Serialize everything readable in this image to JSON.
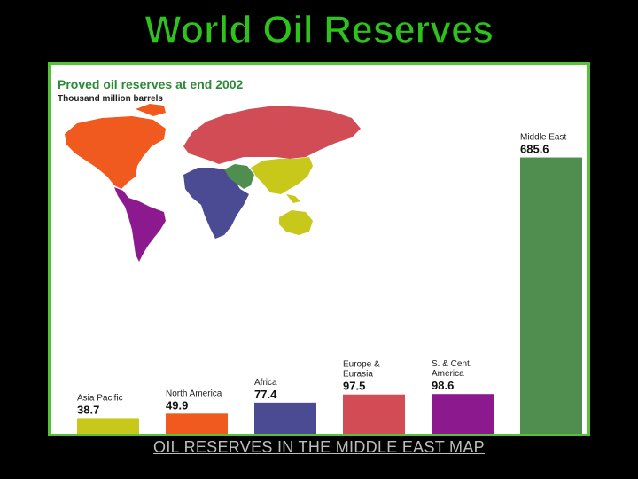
{
  "slide": {
    "title": "World Oil Reserves",
    "caption_link": "OIL RESERVES IN THE MIDDLE EAST MAP"
  },
  "chart_data": {
    "type": "bar",
    "title": "Proved oil reserves at end 2002",
    "subtitle": "Thousand million barrels",
    "categories": [
      "Asia Pacific",
      "North America",
      "Africa",
      "Europe & Eurasia",
      "S. & Cent. America",
      "Middle East"
    ],
    "category_label_lines": [
      [
        "Asia Pacific"
      ],
      [
        "North America"
      ],
      [
        "Africa"
      ],
      [
        "Europe &",
        "Eurasia"
      ],
      [
        "S. & Cent.",
        "America"
      ],
      [
        "Middle East"
      ]
    ],
    "values": [
      38.7,
      49.9,
      77.4,
      97.5,
      98.6,
      685.6
    ],
    "value_labels": [
      "38.7",
      "49.9",
      "77.4",
      "97.5",
      "98.6",
      "685.6"
    ],
    "colors": [
      "#c8c81a",
      "#f05a1e",
      "#4b4b93",
      "#d24c55",
      "#8c1a8e",
      "#4f8e4f"
    ],
    "ylim": [
      0,
      700
    ],
    "grid": false,
    "legend": "none"
  },
  "map": {
    "regions": [
      {
        "name": "north-america",
        "color": "#f05a1e"
      },
      {
        "name": "south-central-america",
        "color": "#8c1a8e"
      },
      {
        "name": "europe-eurasia",
        "color": "#d24c55"
      },
      {
        "name": "africa",
        "color": "#4b4b93"
      },
      {
        "name": "middle-east",
        "color": "#4f8e4f"
      },
      {
        "name": "asia-pacific",
        "color": "#c8c81a"
      }
    ]
  }
}
